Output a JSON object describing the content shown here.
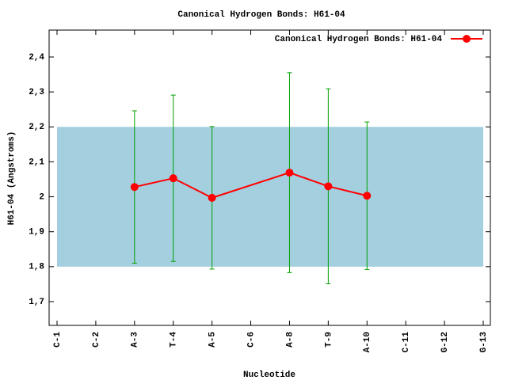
{
  "chart_data": {
    "type": "line",
    "title": "Canonical Hydrogen Bonds: H61-04",
    "x_label": "Nucleotide",
    "y_label": "H61-04 (Angstroms)",
    "categories": [
      "C-1",
      "C-2",
      "A-3",
      "T-4",
      "A-5",
      "C-6",
      "A-8",
      "T-9",
      "A-10",
      "C-11",
      "G-12",
      "G-13"
    ],
    "series": [
      {
        "name": "Canonical Hydrogen Bonds: H61-04",
        "color": "#ff0000",
        "error_color": "#00a000",
        "x": [
          "A-3",
          "T-4",
          "A-5",
          "A-8",
          "T-9",
          "A-10"
        ],
        "values": [
          2.028,
          2.053,
          1.997,
          2.069,
          2.03,
          2.003
        ],
        "errors": [
          0.218,
          0.238,
          0.204,
          0.286,
          0.279,
          0.211
        ]
      }
    ],
    "reference_band": {
      "ymin": 1.8,
      "ymax": 2.2,
      "color": "#a3cfdf"
    },
    "ylim": [
      1.632,
      2.477
    ],
    "yticks": [
      {
        "value": 1.7,
        "label": "1,7"
      },
      {
        "value": 1.8,
        "label": "1,8"
      },
      {
        "value": 1.9,
        "label": "1,9"
      },
      2,
      {
        "value": 2.1,
        "label": "2,1"
      },
      {
        "value": 2.2,
        "label": "2,2"
      },
      {
        "value": 2.3,
        "label": "2,3"
      },
      {
        "value": 2.4,
        "label": "2,4"
      }
    ],
    "legend_position": "top-right"
  }
}
